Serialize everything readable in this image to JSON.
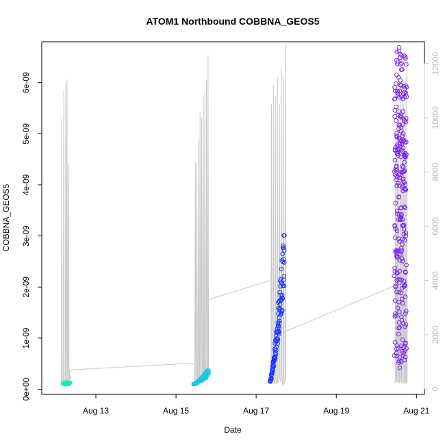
{
  "chart_data": {
    "type": "scatter",
    "title": "ATOM1 Northbound COBBNA_GEOS5",
    "xlabel": "Date",
    "ylabel": "COBBNA_GEOS5",
    "x_ticks": [
      "Aug 13",
      "Aug 15",
      "Aug 17",
      "Aug 19",
      "Aug 21"
    ],
    "x_tick_days": [
      13,
      15,
      17,
      19,
      21
    ],
    "xlim_days": [
      11.65,
      21.2
    ],
    "y_ticks": [
      "0e+00",
      "1e-09",
      "2e-09",
      "3e-09",
      "4e-09",
      "5e-09",
      "6e-09"
    ],
    "y_tick_values": [
      0,
      1,
      2,
      3,
      4,
      5,
      6
    ],
    "y_unit": "1e-09",
    "ylim": [
      -0.1,
      6.8
    ],
    "y2_ticks": [
      "0",
      "2000",
      "4000",
      "6000",
      "8000",
      "10000",
      "12000"
    ],
    "y2_tick_values": [
      0,
      2000,
      4000,
      6000,
      8000,
      10000,
      12000
    ],
    "y2lim": [
      -200,
      12800
    ],
    "grid": false,
    "legend": "none",
    "altitude_series_color": "#c8c8c8",
    "point_groups": [
      {
        "color": "#1de9c0",
        "day_start": 12.18,
        "day_end": 12.35,
        "y_min": 0.1,
        "y_max": 0.13,
        "count": 30,
        "pattern": "flat"
      },
      {
        "color": "#19c6e8",
        "day_start": 15.45,
        "day_end": 15.82,
        "y_min": 0.1,
        "y_max": 0.42,
        "count": 55,
        "pattern": "rise"
      },
      {
        "color": "#1a33ff",
        "day_start": 17.35,
        "day_end": 17.7,
        "y_min": 0.15,
        "y_max": 3.25,
        "count": 120,
        "pattern": "rise"
      },
      {
        "color": "#7a22ee",
        "day_start": 20.45,
        "day_end": 20.75,
        "y_min": 0.4,
        "y_max": 6.7,
        "count": 260,
        "pattern": "spread"
      }
    ],
    "altitude_flights": [
      {
        "days": [
          12.15,
          12.2,
          12.25,
          12.28,
          12.32,
          12.35
        ],
        "peaks": [
          10000,
          11000,
          11200,
          11400,
          8300,
          700
        ]
      },
      {
        "days": [
          15.48,
          15.52,
          15.56,
          15.6,
          15.64,
          15.68,
          15.72,
          15.76,
          15.8
        ],
        "peaks": [
          8400,
          8300,
          9200,
          10200,
          10000,
          10800,
          11000,
          11400,
          12300
        ]
      },
      {
        "days": [
          17.38,
          17.43,
          17.48,
          17.53,
          17.58,
          17.63,
          17.68,
          17.73
        ],
        "peaks": [
          10500,
          11200,
          10800,
          11500,
          10500,
          11800,
          11500,
          12700
        ]
      },
      {
        "days": [
          20.48,
          20.52,
          20.56,
          20.6,
          20.64,
          20.68,
          20.72,
          20.76
        ],
        "peaks": [
          9300,
          9500,
          10500,
          11300,
          10800,
          10500,
          11500,
          12000
        ]
      }
    ],
    "transit_lines": [
      {
        "from": [
          12.35,
          700
        ],
        "to": [
          15.45,
          950
        ]
      },
      {
        "from": [
          15.82,
          3300
        ],
        "to": [
          17.35,
          4000
        ]
      },
      {
        "from": [
          17.7,
          2100
        ],
        "to": [
          20.45,
          3800
        ]
      }
    ]
  }
}
